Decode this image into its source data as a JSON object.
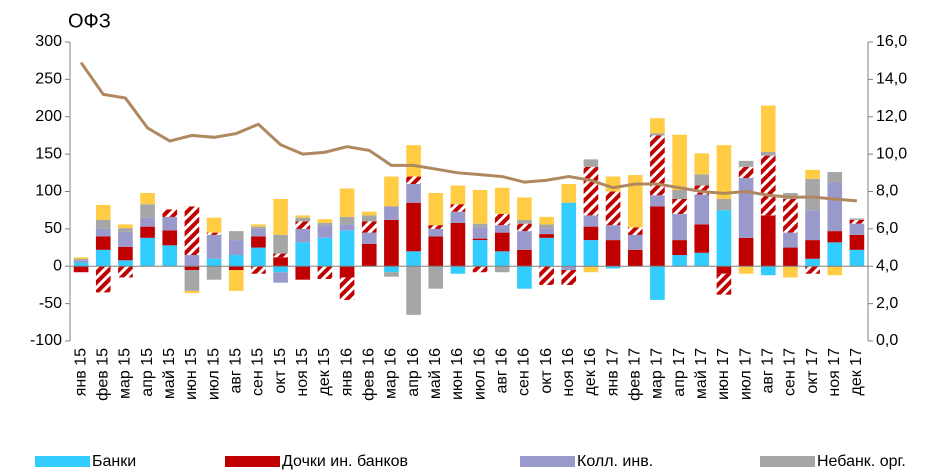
{
  "chart_data": {
    "type": "bar",
    "title": "ОФЗ",
    "categories": [
      "янв 15",
      "фев 15",
      "мар 15",
      "апр 15",
      "май 15",
      "июн 15",
      "июл 15",
      "авг 15",
      "сен 15",
      "окт 15",
      "ноя 15",
      "дек 15",
      "янв 16",
      "фев 16",
      "мар 16",
      "апр 16",
      "май 16",
      "июн 16",
      "июл 16",
      "авг 16",
      "сен 16",
      "окт 16",
      "ноя 16",
      "дек 16",
      "янв 17",
      "фев 17",
      "мар 17",
      "апр 17",
      "май 17",
      "июн 17",
      "июл 17",
      "авг 17",
      "сен 17",
      "окт 17",
      "ноя 17",
      "дек 17"
    ],
    "series": [
      {
        "name": "Банки",
        "color": "#33ccff",
        "values": [
          5,
          22,
          8,
          38,
          28,
          0,
          10,
          15,
          25,
          -8,
          32,
          38,
          48,
          0,
          -8,
          20,
          0,
          -10,
          35,
          20,
          -30,
          38,
          85,
          35,
          -3,
          0,
          -45,
          15,
          18,
          75,
          0,
          -12,
          0,
          10,
          32,
          22
        ]
      },
      {
        "name": "Дочки ин. банков",
        "color": "#c00000",
        "values": [
          -8,
          18,
          18,
          15,
          20,
          -5,
          0,
          -5,
          15,
          12,
          -18,
          0,
          -15,
          30,
          62,
          65,
          40,
          58,
          2,
          25,
          22,
          5,
          0,
          18,
          35,
          22,
          80,
          20,
          38,
          -10,
          38,
          68,
          25,
          25,
          15,
          20
        ]
      },
      {
        "name": "Колл. инв.",
        "color": "#9999cc",
        "values": [
          3,
          10,
          20,
          12,
          18,
          15,
          32,
          20,
          10,
          -14,
          18,
          17,
          8,
          15,
          18,
          25,
          10,
          15,
          15,
          10,
          25,
          8,
          -5,
          15,
          20,
          20,
          15,
          35,
          40,
          0,
          80,
          0,
          20,
          40,
          65,
          15
        ]
      },
      {
        "color": "#c00000",
        "pattern": "hatch",
        "values": [
          0,
          -35,
          -15,
          0,
          10,
          65,
          3,
          0,
          -10,
          5,
          10,
          -17,
          -30,
          15,
          0,
          10,
          5,
          10,
          -8,
          15,
          10,
          -25,
          -20,
          65,
          45,
          10,
          80,
          20,
          12,
          -28,
          15,
          80,
          45,
          -10,
          0,
          5
        ]
      },
      {
        "name": "Небанк. орг.",
        "color": "#a6a6a6",
        "values": [
          2,
          12,
          5,
          18,
          0,
          -28,
          -18,
          12,
          3,
          25,
          5,
          3,
          10,
          8,
          -6,
          -65,
          -30,
          0,
          5,
          -8,
          5,
          5,
          0,
          10,
          0,
          0,
          3,
          12,
          15,
          15,
          8,
          5,
          8,
          42,
          14,
          2
        ]
      },
      {
        "color": "#ffcc44",
        "values": [
          2,
          20,
          5,
          15,
          0,
          -3,
          20,
          -28,
          3,
          48,
          3,
          5,
          38,
          5,
          40,
          42,
          43,
          25,
          45,
          35,
          30,
          10,
          25,
          -8,
          20,
          70,
          20,
          74,
          28,
          72,
          -10,
          62,
          -15,
          12,
          -12,
          0
        ]
      },
      {
        "type": "line",
        "axis": "y2",
        "color": "#b08860",
        "values": [
          14.9,
          13.2,
          13.0,
          11.4,
          10.7,
          11.0,
          10.9,
          11.1,
          11.6,
          10.5,
          10.0,
          10.1,
          10.4,
          10.2,
          9.4,
          9.4,
          9.2,
          9.0,
          8.9,
          8.8,
          8.5,
          8.6,
          8.8,
          8.6,
          8.2,
          8.4,
          8.4,
          8.2,
          8.0,
          7.9,
          8.0,
          7.8,
          7.7,
          7.7,
          7.6,
          7.5
        ]
      }
    ],
    "ylim": [
      -100,
      300
    ],
    "yticks": [
      -100,
      -50,
      0,
      50,
      100,
      150,
      200,
      250,
      300
    ],
    "y2lim": [
      0,
      16
    ],
    "y2ticks": [
      {
        "value": 0,
        "label": "0,0"
      },
      {
        "value": 2,
        "label": "2,0"
      },
      {
        "value": 4,
        "label": "4,0"
      },
      {
        "value": 6,
        "label": "6,0"
      },
      {
        "value": 8,
        "label": "8,0"
      },
      {
        "value": 10,
        "label": "10,0"
      },
      {
        "value": 12,
        "label": "12,0"
      },
      {
        "value": 14,
        "label": "14,0"
      },
      {
        "value": 16,
        "label": "16,0"
      }
    ],
    "legend": "bottom"
  }
}
